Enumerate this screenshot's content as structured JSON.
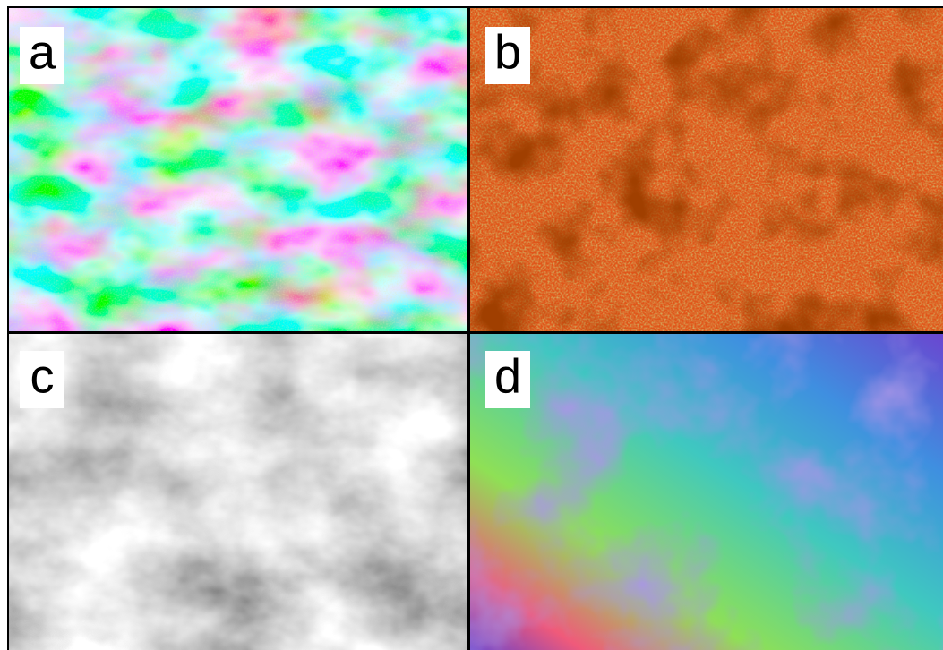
{
  "panels": [
    {
      "label": "a"
    },
    {
      "label": "b"
    },
    {
      "label": "c"
    },
    {
      "label": "d"
    }
  ]
}
